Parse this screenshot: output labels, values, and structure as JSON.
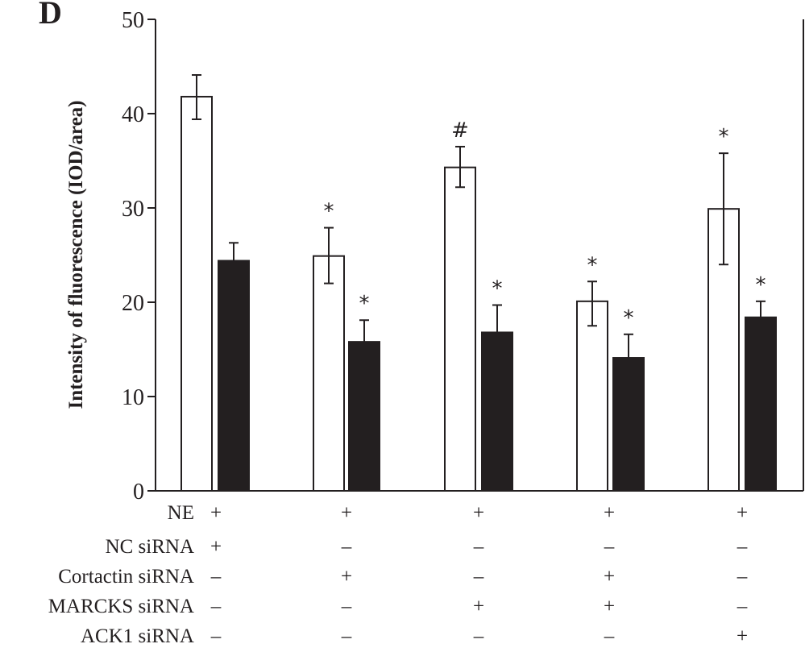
{
  "chart_data": {
    "type": "bar",
    "panel_label": "D",
    "title": "",
    "xlabel": "",
    "ylabel": "Intensity of fluorescence (IOD/area)",
    "ylim": [
      0,
      50
    ],
    "yticks": [
      "0",
      "10",
      "20",
      "30",
      "40",
      "50"
    ],
    "grid": false,
    "groups": 5,
    "series": [
      {
        "name": "white",
        "color": "#ffffff",
        "values": [
          41.8,
          24.9,
          34.3,
          20.1,
          29.9
        ],
        "err_upper": [
          44.1,
          27.9,
          36.5,
          22.2,
          35.8
        ],
        "err_lower": [
          39.4,
          22.0,
          32.2,
          17.5,
          24.0
        ],
        "annotations": [
          "",
          "*",
          "#",
          "*",
          "*"
        ]
      },
      {
        "name": "black",
        "color": "#231f20",
        "values": [
          24.4,
          15.8,
          16.8,
          14.1,
          18.4
        ],
        "err_upper": [
          26.3,
          18.1,
          19.7,
          16.6,
          20.1
        ],
        "annotations": [
          "",
          "*",
          "*",
          "*",
          "*"
        ]
      }
    ],
    "condition_table": [
      {
        "label": "NE",
        "signs": [
          "+",
          "+",
          "+",
          "+",
          "+"
        ]
      },
      {
        "label": "NC siRNA",
        "signs": [
          "+",
          "–",
          "–",
          "–",
          "–"
        ]
      },
      {
        "label": "Cortactin siRNA",
        "signs": [
          "–",
          "+",
          "–",
          "+",
          "–"
        ]
      },
      {
        "label": "MARCKS siRNA",
        "signs": [
          "–",
          "–",
          "+",
          "+",
          "–"
        ]
      },
      {
        "label": "ACK1 siRNA",
        "signs": [
          "–",
          "–",
          "–",
          "–",
          "+"
        ]
      }
    ]
  }
}
